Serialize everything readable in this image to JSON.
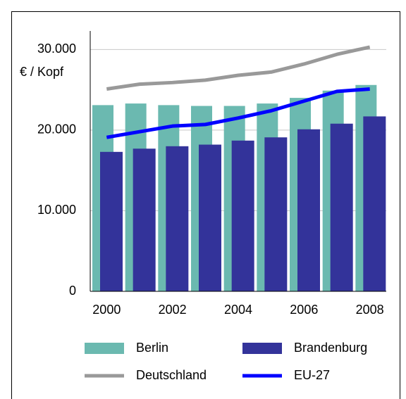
{
  "chart_data": {
    "type": "bar",
    "y_axis_label": "€ / Kopf",
    "categories": [
      "2000",
      null,
      "2002",
      null,
      "2004",
      null,
      "2006",
      null,
      "2008"
    ],
    "series": [
      {
        "name": "Berlin",
        "type": "bar",
        "color": "#6bb9b0",
        "values": [
          23100,
          23300,
          23100,
          23000,
          23000,
          23300,
          24000,
          24900,
          25600
        ]
      },
      {
        "name": "Brandenburg",
        "type": "bar",
        "color": "#33339a",
        "values": [
          17300,
          17700,
          18000,
          18200,
          18700,
          19100,
          20100,
          20800,
          21700
        ]
      },
      {
        "name": "Deutschland",
        "type": "line",
        "color": "#999999",
        "values": [
          25100,
          25700,
          25900,
          26200,
          26800,
          27200,
          28200,
          29400,
          30300
        ]
      },
      {
        "name": "EU-27",
        "type": "line",
        "color": "#0000ff",
        "values": [
          19100,
          19800,
          20500,
          20700,
          21500,
          22400,
          23600,
          24800,
          25100
        ]
      }
    ],
    "ylim": [
      0,
      32300
    ],
    "yticks": [
      0,
      {
        "value": 10000,
        "label": "10.000"
      },
      {
        "value": 20000,
        "label": "20.000"
      },
      {
        "value": 30000,
        "label": "30.000"
      }
    ],
    "grid": true
  }
}
